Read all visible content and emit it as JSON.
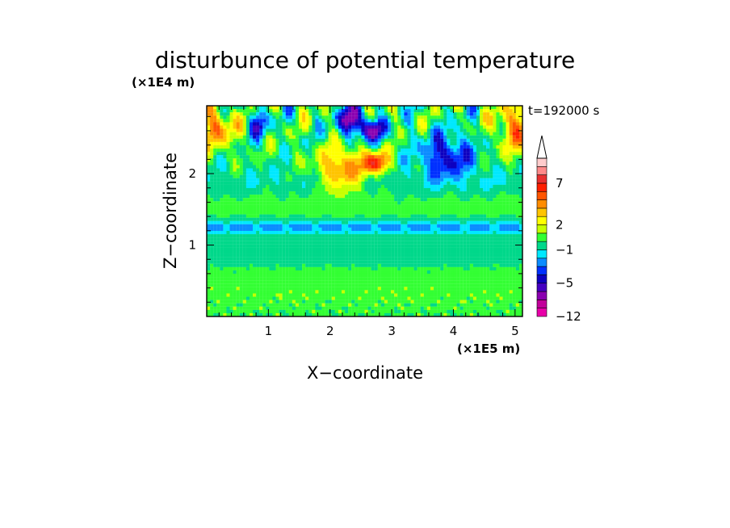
{
  "chart_data": {
    "type": "heatmap",
    "title": "disturbunce of potential temperature",
    "time_label": "t=192000 s",
    "xlabel": "X−coordinate",
    "ylabel": "Z−coordinate",
    "x_unit": "(×1E5 m)",
    "y_unit": "(×1E4 m)",
    "xlim": [
      0.0,
      5.12
    ],
    "ylim": [
      0.0,
      2.95
    ],
    "x_ticks": [
      1,
      2,
      3,
      4,
      5
    ],
    "y_ticks": [
      1,
      2
    ],
    "x_minor_step": 0.2,
    "y_minor_step": 0.2,
    "colorbar": {
      "levels": [
        -12,
        -10,
        -8,
        -6,
        -5,
        -4,
        -3,
        -2,
        -1,
        0,
        1,
        2,
        3,
        4,
        5,
        6,
        7,
        8,
        9,
        10
      ],
      "tick_labels": [
        {
          "value": 7,
          "text": "7"
        },
        {
          "value": 2,
          "text": "2"
        },
        {
          "value": -1,
          "text": "−1"
        },
        {
          "value": -5,
          "text": "−5"
        },
        {
          "value": -12,
          "text": "−12"
        }
      ],
      "colors": [
        "#e800a8",
        "#c2009a",
        "#8a00b0",
        "#4500c2",
        "#0d00c0",
        "#0030ff",
        "#0b8cff",
        "#00e8ff",
        "#00d88a",
        "#33ff33",
        "#c6ff00",
        "#ffff00",
        "#ffc400",
        "#ff8c00",
        "#ff5500",
        "#ff1f00",
        "#e83030",
        "#ff8a8a",
        "#ffcccc"
      ],
      "extend": "max"
    },
    "field_features": [
      {
        "kind": "band",
        "z_center": 0.35,
        "z_width": 0.35,
        "value": 0.6
      },
      {
        "kind": "band",
        "z_center": 0.95,
        "z_width": 0.22,
        "value": -0.9
      },
      {
        "kind": "band",
        "z_center": 1.25,
        "z_width": 0.08,
        "value": -2.4
      },
      {
        "kind": "band",
        "z_center": 1.6,
        "z_width": 0.15,
        "value": 0.3
      },
      {
        "kind": "band",
        "z_center": 1.9,
        "z_width": 0.2,
        "value": -0.8
      },
      {
        "kind": "blob",
        "x": 2.35,
        "z": 2.75,
        "rx": 0.22,
        "rz": 0.2,
        "value": -6.5
      },
      {
        "kind": "blob",
        "x": 2.7,
        "z": 2.6,
        "rx": 0.22,
        "rz": 0.15,
        "value": -5.5
      },
      {
        "kind": "blob",
        "x": 3.9,
        "z": 2.25,
        "rx": 0.45,
        "rz": 0.3,
        "value": -4.5
      },
      {
        "kind": "blob",
        "x": 0.85,
        "z": 2.7,
        "rx": 0.15,
        "rz": 0.2,
        "value": -4.0
      },
      {
        "kind": "blob",
        "x": 2.2,
        "z": 2.05,
        "rx": 0.4,
        "rz": 0.3,
        "value": 5.0
      },
      {
        "kind": "blob",
        "x": 2.75,
        "z": 2.15,
        "rx": 0.2,
        "rz": 0.15,
        "value": 6.5
      },
      {
        "kind": "blob",
        "x": 0.15,
        "z": 2.65,
        "rx": 0.3,
        "rz": 0.3,
        "value": 4.5
      },
      {
        "kind": "blob",
        "x": 5.0,
        "z": 2.65,
        "rx": 0.3,
        "rz": 0.35,
        "value": 4.5
      }
    ]
  }
}
